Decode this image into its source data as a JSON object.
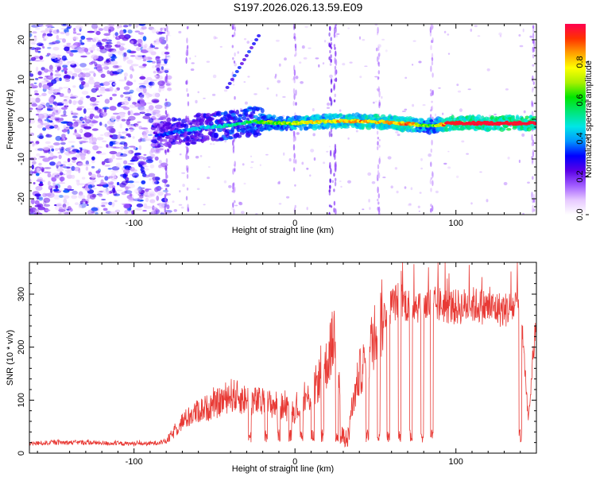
{
  "title": "S197.2026.026.13.59.E09",
  "colors": {
    "snr_line": "#e83a35",
    "background": "#ffffff",
    "axis": "#000000",
    "colormap": [
      "#ffffff",
      "#e6c8ff",
      "#a05aff",
      "#5a00e6",
      "#0000ff",
      "#0096ff",
      "#00e6e6",
      "#00e678",
      "#00e600",
      "#aaf000",
      "#ffff00",
      "#ffa000",
      "#ff3200",
      "#ff0050"
    ]
  },
  "chart_data": [
    {
      "type": "heatmap",
      "title": "",
      "xlabel": "Height of straight line (km)",
      "ylabel": "Frequency (Hz)",
      "xlim": [
        -165,
        150
      ],
      "ylim": [
        -24,
        24
      ],
      "xticks": [
        -100,
        0,
        100
      ],
      "yticks": [
        -20,
        -10,
        0,
        10,
        20
      ],
      "xtick_labels": [
        "-100",
        "0",
        "100"
      ],
      "ytick_labels": [
        "-20",
        "-10",
        "0",
        "10",
        "20"
      ],
      "colorbar": {
        "label": "Normalized spectral amplitude",
        "range": [
          0,
          1
        ],
        "ticks": [
          0.0,
          0.2,
          0.4,
          0.6,
          0.8
        ],
        "tick_labels": [
          "0.0",
          "0.2",
          "0.4",
          "0.6",
          "0.8"
        ]
      },
      "ridge": {
        "x": [
          -85,
          -70,
          -55,
          -40,
          -25,
          -10,
          0,
          10,
          25,
          40,
          55,
          70,
          85,
          95,
          110,
          125,
          140,
          150
        ],
        "freq_hz": [
          -4,
          -3,
          -2,
          -1.5,
          -0.5,
          -1,
          -1,
          -0.7,
          -0.5,
          -0.5,
          -0.7,
          -1.2,
          -1.8,
          -1,
          -1,
          -1,
          -1,
          -1
        ],
        "amplitude": [
          0.3,
          0.38,
          0.42,
          0.5,
          0.58,
          0.66,
          0.72,
          0.78,
          0.78,
          0.82,
          0.84,
          0.86,
          0.6,
          0.95,
          0.97,
          0.97,
          0.97,
          0.97
        ]
      }
    },
    {
      "type": "line",
      "title": "",
      "xlabel": "Height of straight line (km)",
      "ylabel": "SNR (10 * v/v)",
      "xlim": [
        -165,
        150
      ],
      "ylim": [
        0,
        360
      ],
      "xticks": [
        -100,
        0,
        100
      ],
      "yticks": [
        0,
        100,
        200,
        300
      ],
      "xtick_labels": [
        "-100",
        "0",
        "100"
      ],
      "ytick_labels": [
        "0",
        "100",
        "200",
        "300"
      ],
      "series": [
        {
          "name": "SNR",
          "x": [
            -165,
            -150,
            -130,
            -110,
            -90,
            -80,
            -75,
            -70,
            -60,
            -50,
            -40,
            -30,
            -20,
            -10,
            0,
            10,
            20,
            25,
            30,
            35,
            40,
            45,
            50,
            55,
            60,
            65,
            70,
            80,
            90,
            100,
            110,
            120,
            130,
            140,
            145,
            150
          ],
          "y": [
            18,
            20,
            20,
            18,
            18,
            22,
            40,
            60,
            80,
            90,
            110,
            100,
            95,
            90,
            80,
            110,
            170,
            230,
            40,
            80,
            150,
            180,
            230,
            260,
            280,
            290,
            280,
            280,
            280,
            275,
            280,
            275,
            270,
            280,
            60,
            260
          ]
        }
      ]
    }
  ]
}
